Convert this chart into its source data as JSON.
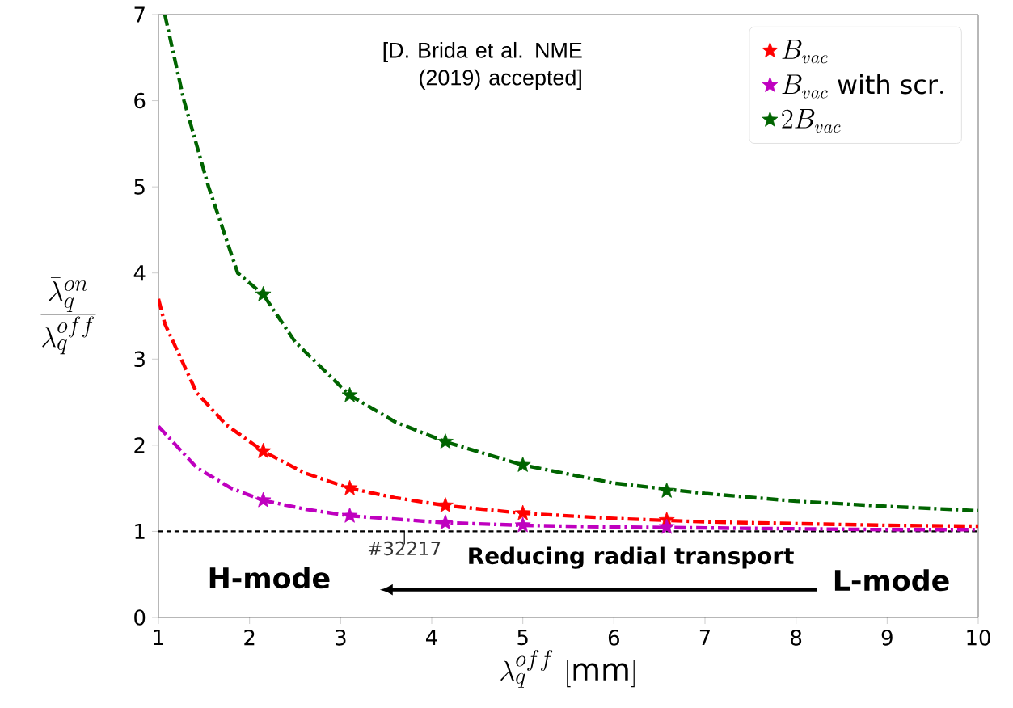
{
  "chart_data": {
    "type": "scatter",
    "xlabel": "\\lambda_q^{off}\\ [\\mathrm{mm}]",
    "ylabel": "\\frac{\\bar{\\lambda}_q^{on}}{\\lambda_q^{off}}",
    "xlim": [
      1,
      10
    ],
    "ylim": [
      0,
      7
    ],
    "xticks": [
      1,
      2,
      3,
      4,
      5,
      6,
      7,
      8,
      9,
      10
    ],
    "yticks": [
      0,
      1,
      2,
      3,
      4,
      5,
      6,
      7
    ],
    "marker": "star",
    "legend": "top right",
    "grid": false,
    "series": [
      {
        "name": "B_{vac}",
        "color": "#ff0000",
        "x": [
          2.15,
          3.1,
          4.15,
          5.0,
          6.58
        ],
        "values": [
          1.93,
          1.5,
          1.3,
          1.21,
          1.13
        ]
      },
      {
        "name": "B_{vac}\\ \\mathrm{with\\ scr.}",
        "color": "#bf00bf",
        "x": [
          2.15,
          3.1,
          4.15,
          5.0,
          6.58
        ],
        "values": [
          1.36,
          1.18,
          1.1,
          1.07,
          1.05
        ]
      },
      {
        "name": "2B_{vac}",
        "color": "#006400",
        "x": [
          2.15,
          3.1,
          4.15,
          5.0,
          6.58
        ],
        "values": [
          3.75,
          2.58,
          2.04,
          1.77,
          1.47
        ]
      },
      {
        "type": "line",
        "color": "#ff0000",
        "line_style": "dashed",
        "marker": "none",
        "x": [
          1,
          1.07,
          1.42,
          1.74,
          2.15,
          2.6,
          3.1,
          3.6,
          4.15,
          5,
          6,
          7,
          8,
          9,
          10
        ],
        "values": [
          3.7,
          3.41,
          2.61,
          2.24,
          1.93,
          1.68,
          1.5,
          1.39,
          1.3,
          1.21,
          1.15,
          1.11,
          1.09,
          1.07,
          1.06
        ]
      },
      {
        "type": "line",
        "color": "#bf00bf",
        "line_style": "dashed",
        "marker": "none",
        "x": [
          1,
          1.42,
          1.8,
          2.15,
          2.6,
          3.1,
          4.15,
          5,
          6,
          7,
          8,
          9,
          10
        ],
        "values": [
          2.22,
          1.74,
          1.5,
          1.36,
          1.26,
          1.18,
          1.1,
          1.07,
          1.05,
          1.04,
          1.03,
          1.02,
          1.02
        ]
      },
      {
        "type": "line",
        "color": "#006400",
        "line_style": "dashed",
        "marker": "none",
        "x": [
          1.07,
          1.28,
          1.55,
          1.87,
          2.15,
          2.5,
          3.1,
          3.6,
          4.15,
          5,
          6,
          7,
          8,
          9,
          10
        ],
        "values": [
          7.0,
          6.0,
          5.0,
          4.0,
          3.75,
          3.2,
          2.58,
          2.27,
          2.04,
          1.77,
          1.56,
          1.44,
          1.35,
          1.29,
          1.24
        ]
      }
    ],
    "ref_lines": [
      {
        "axis": "y",
        "value": 1,
        "color": "#000000",
        "line_style": "dashed"
      }
    ],
    "annotations": [
      "[D. Brida et al. NME\n(2019) accepted]",
      {
        "text": "#32217",
        "x": 3.7,
        "y": 1
      },
      "Reducing radial transport",
      "H-mode",
      "L-mode"
    ]
  }
}
